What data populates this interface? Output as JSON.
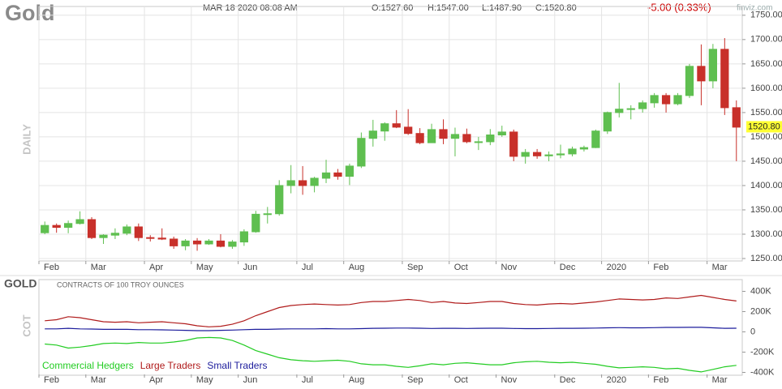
{
  "logo": "finviz.com",
  "chart_data": [
    {
      "type": "candlestick",
      "title": "Gold",
      "date": "MAR 18 2020 08:08 AM",
      "ohlc": [
        "O:1527.60",
        "H:1547.00",
        "L:1487.90",
        "C:1520.80"
      ],
      "change": "-5.00 (0.33%)",
      "y_label": "DAILY",
      "last_price": {
        "value": 1520.8,
        "label": "1520.80"
      },
      "categories": [
        "Feb",
        null,
        null,
        null,
        "Mar",
        null,
        null,
        null,
        null,
        "Apr",
        null,
        null,
        null,
        "May",
        null,
        null,
        null,
        "Jun",
        null,
        null,
        null,
        null,
        "Jul",
        null,
        null,
        null,
        "Aug",
        null,
        null,
        null,
        null,
        "Sep",
        null,
        null,
        null,
        "Oct",
        null,
        null,
        null,
        "Nov",
        null,
        null,
        null,
        null,
        "Dec",
        null,
        null,
        null,
        "2020",
        null,
        null,
        null,
        "Feb",
        null,
        null,
        null,
        null,
        "Mar",
        null,
        null
      ],
      "open": [
        1303,
        1318,
        1314,
        1322,
        1330,
        1293,
        1298,
        1302,
        1315,
        1293,
        1292,
        1290,
        1276,
        1286,
        1280,
        1286,
        1275,
        1284,
        1305,
        1341,
        1342,
        1400,
        1410,
        1400,
        1415,
        1426,
        1419,
        1440,
        1497,
        1512,
        1527,
        1520,
        1507,
        1488,
        1515,
        1497,
        1505,
        1490,
        1490,
        1504,
        1510,
        1460,
        1468,
        1461,
        1463,
        1465,
        1475,
        1478,
        1512,
        1550,
        1557,
        1558,
        1570,
        1585,
        1568,
        1585,
        1645,
        1615,
        1680,
        1560
      ],
      "high": [
        1326,
        1322,
        1328,
        1347,
        1335,
        1300,
        1312,
        1320,
        1322,
        1298,
        1312,
        1295,
        1290,
        1292,
        1290,
        1300,
        1288,
        1310,
        1348,
        1356,
        1411,
        1442,
        1440,
        1418,
        1453,
        1434,
        1445,
        1509,
        1535,
        1530,
        1555,
        1557,
        1518,
        1527,
        1536,
        1519,
        1517,
        1500,
        1516,
        1523,
        1515,
        1475,
        1475,
        1470,
        1484,
        1480,
        1482,
        1515,
        1552,
        1611,
        1565,
        1575,
        1590,
        1590,
        1590,
        1650,
        1690,
        1691,
        1703,
        1575
      ],
      "low": [
        1300,
        1303,
        1302,
        1320,
        1290,
        1280,
        1290,
        1298,
        1286,
        1285,
        1288,
        1270,
        1267,
        1266,
        1278,
        1273,
        1270,
        1276,
        1303,
        1322,
        1338,
        1384,
        1381,
        1386,
        1405,
        1412,
        1401,
        1436,
        1480,
        1492,
        1518,
        1504,
        1485,
        1490,
        1485,
        1460,
        1487,
        1473,
        1483,
        1500,
        1450,
        1445,
        1455,
        1450,
        1456,
        1460,
        1470,
        1477,
        1506,
        1540,
        1536,
        1550,
        1560,
        1550,
        1565,
        1580,
        1565,
        1600,
        1545,
        1450
      ],
      "close": [
        1318,
        1314,
        1322,
        1330,
        1293,
        1298,
        1302,
        1315,
        1293,
        1292,
        1290,
        1276,
        1286,
        1280,
        1286,
        1275,
        1284,
        1305,
        1341,
        1342,
        1400,
        1410,
        1400,
        1415,
        1426,
        1419,
        1440,
        1497,
        1512,
        1527,
        1520,
        1507,
        1488,
        1515,
        1497,
        1505,
        1490,
        1490,
        1504,
        1510,
        1460,
        1468,
        1461,
        1463,
        1465,
        1475,
        1478,
        1512,
        1550,
        1557,
        1558,
        1570,
        1585,
        1568,
        1585,
        1645,
        1615,
        1680,
        1560,
        1520
      ],
      "up_color": "#5fbf50",
      "down_color": "#c8302a",
      "ylim": [
        1245,
        1768
      ],
      "yticks": [
        {
          "value": 1250,
          "label": "1250.00"
        },
        {
          "value": 1300,
          "label": "1300.00"
        },
        {
          "value": 1350,
          "label": "1350.00"
        },
        {
          "value": 1400,
          "label": "1400.00"
        },
        {
          "value": 1450,
          "label": "1450.00"
        },
        {
          "value": 1500,
          "label": "1500.00"
        },
        {
          "value": 1550,
          "label": "1550.00"
        },
        {
          "value": 1600,
          "label": "1600.00"
        },
        {
          "value": 1650,
          "label": "1650.00"
        },
        {
          "value": 1700,
          "label": "1700.00"
        },
        {
          "value": 1750,
          "label": "1750.00"
        }
      ],
      "grid": true
    },
    {
      "type": "line",
      "title": "GOLD",
      "subtitle": "CONTRACTS OF 100 TROY OUNCES",
      "y_label": "COT",
      "categories": [
        "Feb",
        null,
        null,
        null,
        "Mar",
        null,
        null,
        null,
        null,
        "Apr",
        null,
        null,
        null,
        "May",
        null,
        null,
        null,
        "Jun",
        null,
        null,
        null,
        null,
        "Jul",
        null,
        null,
        null,
        "Aug",
        null,
        null,
        null,
        null,
        "Sep",
        null,
        null,
        null,
        "Oct",
        null,
        null,
        null,
        "Nov",
        null,
        null,
        null,
        null,
        "Dec",
        null,
        null,
        null,
        "2020",
        null,
        null,
        null,
        "Feb",
        null,
        null,
        null,
        null,
        "Mar",
        null,
        null
      ],
      "series": [
        {
          "name": "Commercial Hedgers",
          "color": "#22cc22",
          "values": [
            -120000,
            -130000,
            -160000,
            -150000,
            -135000,
            -115000,
            -110000,
            -115000,
            -105000,
            -110000,
            -110000,
            -100000,
            -85000,
            -60000,
            -55000,
            -60000,
            -85000,
            -130000,
            -185000,
            -220000,
            -255000,
            -275000,
            -285000,
            -290000,
            -285000,
            -280000,
            -290000,
            -315000,
            -325000,
            -325000,
            -340000,
            -350000,
            -335000,
            -315000,
            -325000,
            -310000,
            -305000,
            -315000,
            -325000,
            -325000,
            -305000,
            -295000,
            -290000,
            -300000,
            -305000,
            -300000,
            -310000,
            -320000,
            -340000,
            -355000,
            -350000,
            -345000,
            -350000,
            -365000,
            -360000,
            -380000,
            -395000,
            -370000,
            -345000,
            -330000
          ]
        },
        {
          "name": "Large Traders",
          "color": "#b01c1c",
          "values": [
            110000,
            120000,
            150000,
            140000,
            120000,
            100000,
            95000,
            100000,
            90000,
            95000,
            100000,
            90000,
            80000,
            60000,
            50000,
            55000,
            75000,
            110000,
            160000,
            200000,
            240000,
            260000,
            270000,
            275000,
            270000,
            265000,
            270000,
            290000,
            300000,
            300000,
            310000,
            320000,
            310000,
            290000,
            300000,
            285000,
            280000,
            290000,
            300000,
            300000,
            280000,
            270000,
            265000,
            275000,
            280000,
            275000,
            285000,
            295000,
            310000,
            325000,
            320000,
            315000,
            320000,
            335000,
            330000,
            345000,
            360000,
            340000,
            320000,
            305000
          ]
        },
        {
          "name": "Small Traders",
          "color": "#1c1c9c",
          "values": [
            30000,
            30000,
            35000,
            30000,
            28000,
            25000,
            25000,
            25000,
            22000,
            22000,
            20000,
            18000,
            15000,
            12000,
            12000,
            15000,
            18000,
            22000,
            25000,
            25000,
            28000,
            30000,
            30000,
            30000,
            32000,
            30000,
            30000,
            32000,
            35000,
            36000,
            38000,
            38000,
            36000,
            34000,
            35000,
            35000,
            34000,
            35000,
            36000,
            36000,
            34000,
            32000,
            32000,
            34000,
            35000,
            35000,
            36000,
            38000,
            40000,
            42000,
            40000,
            40000,
            42000,
            44000,
            44000,
            45000,
            45000,
            40000,
            35000,
            36000
          ]
        }
      ],
      "ylim": [
        -420000,
        500000
      ],
      "yticks": [
        {
          "value": 400000,
          "label": "400K"
        },
        {
          "value": 200000,
          "label": "200K"
        },
        0,
        {
          "value": -200000,
          "label": "-200K"
        },
        {
          "value": -400000,
          "label": "-400K"
        }
      ],
      "legend": "bottom-left"
    }
  ]
}
